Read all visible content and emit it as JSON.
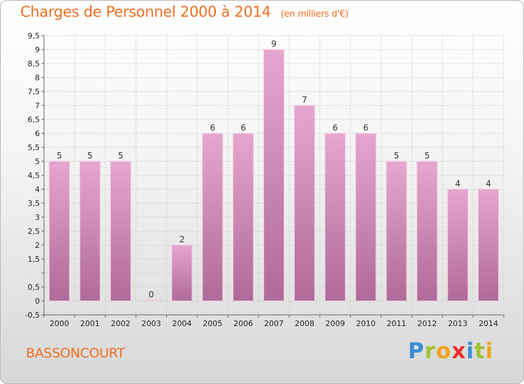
{
  "header": {
    "title": "Charges de Personnel 2000 à 2014",
    "unit": "(en milliers d'€)"
  },
  "commune": "BASSONCOURT",
  "brand": {
    "letters": [
      {
        "ch": "P",
        "color": "#3a8fd6"
      },
      {
        "ch": "r",
        "color": "#9fc435"
      },
      {
        "ch": "o",
        "color": "#f3a21b"
      },
      {
        "ch": "x",
        "color": "#e8312a"
      },
      {
        "ch": "i",
        "color": "#3a8fd6"
      },
      {
        "ch": "t",
        "color": "#9fc435"
      },
      {
        "ch": "i",
        "color": "#f3a21b"
      }
    ]
  },
  "chart_data": {
    "type": "bar",
    "title": "Charges de Personnel 2000 à 2014",
    "categories": [
      "2000",
      "2001",
      "2002",
      "2003",
      "2004",
      "2005",
      "2006",
      "2007",
      "2008",
      "2009",
      "2010",
      "2011",
      "2012",
      "2013",
      "2014"
    ],
    "values": [
      5,
      5,
      5,
      0,
      2,
      6,
      6,
      9,
      7,
      6,
      6,
      5,
      5,
      4,
      4
    ],
    "data_labels": [
      "5",
      "5",
      "5",
      "0",
      "2",
      "6",
      "6",
      "9",
      "7",
      "6",
      "6",
      "5",
      "5",
      "4",
      "4"
    ],
    "ylim": [
      -0.5,
      9.5
    ],
    "yticks": [
      -0.5,
      0,
      0.5,
      1,
      1.5,
      2,
      2.5,
      3,
      3.5,
      4,
      4.5,
      5,
      5.5,
      6,
      6.5,
      7,
      7.5,
      8,
      8.5,
      9,
      9.5
    ],
    "ytick_labels": [
      "-0,5",
      "0",
      "0,5",
      "",
      "1,5",
      "2",
      "2,5",
      "3",
      "3,5",
      "4",
      "4,5",
      "5",
      "5,5",
      "6",
      "6,5",
      "7",
      "7,5",
      "8",
      "8,5",
      "9",
      "9,5"
    ],
    "bar_color": "#d98ab8",
    "grid": true,
    "legend": "none"
  }
}
